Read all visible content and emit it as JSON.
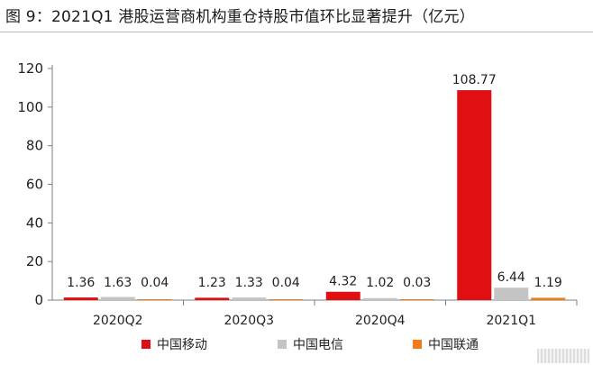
{
  "figure_title": "图 9：2021Q1 港股运营商机构重仓持股市值环比显著提升（亿元）",
  "colors": {
    "axis": "#7f7f7f",
    "text": "#222222"
  },
  "chart_data": {
    "type": "bar",
    "title": "",
    "xlabel": "",
    "ylabel": "",
    "categories": [
      "2020Q2",
      "2020Q3",
      "2020Q4",
      "2021Q1"
    ],
    "ylim": [
      0,
      120
    ],
    "yticks": [
      0,
      20,
      40,
      60,
      80,
      100,
      120
    ],
    "grid": false,
    "legend_position": "bottom",
    "series": [
      {
        "name": "中国移动",
        "color": "#e00f12",
        "values": [
          1.36,
          1.23,
          4.32,
          108.77
        ]
      },
      {
        "name": "中国电信",
        "color": "#c4c4c4",
        "values": [
          1.63,
          1.33,
          1.02,
          6.44
        ]
      },
      {
        "name": "中国联通",
        "color": "#f07b1c",
        "values": [
          0.04,
          0.04,
          0.03,
          1.19
        ]
      }
    ]
  }
}
